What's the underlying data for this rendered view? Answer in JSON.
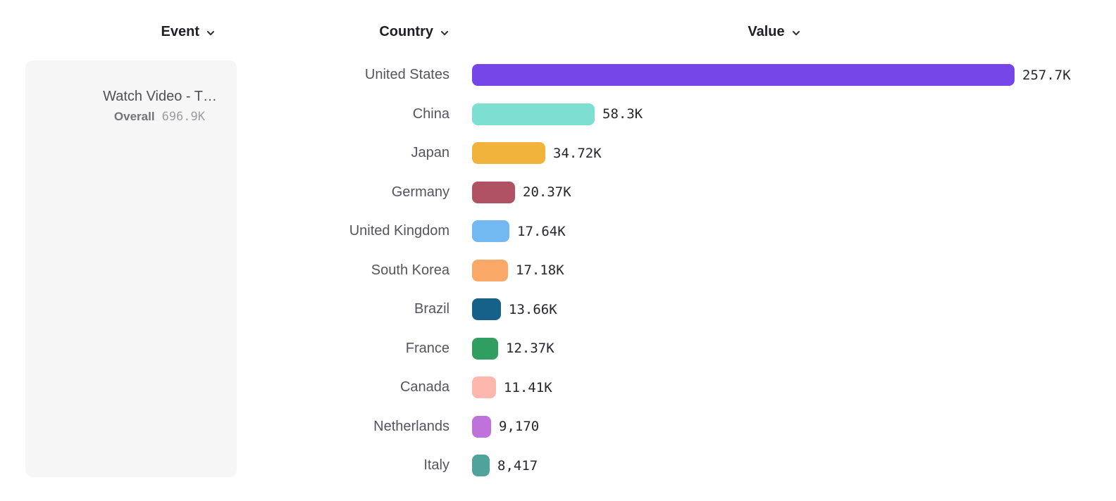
{
  "columns": {
    "event": {
      "label": "Event"
    },
    "country": {
      "label": "Country"
    },
    "value": {
      "label": "Value"
    }
  },
  "event_panel": {
    "event_name": "Watch Video - T…",
    "overall_label": "Overall",
    "overall_value": "696.9K"
  },
  "chart_data": {
    "type": "bar",
    "orientation": "horizontal",
    "title": "",
    "xlabel": "Value",
    "ylabel": "Country",
    "grid": false,
    "legend": "none",
    "xlim": [
      0,
      257700
    ],
    "categories": [
      "United States",
      "China",
      "Japan",
      "Germany",
      "United Kingdom",
      "South Korea",
      "Brazil",
      "France",
      "Canada",
      "Netherlands",
      "Italy"
    ],
    "values": [
      257700,
      58300,
      34720,
      20370,
      17640,
      17180,
      13660,
      12370,
      11410,
      9170,
      8417
    ],
    "value_labels": [
      "257.7K",
      "58.3K",
      "34.72K",
      "20.37K",
      "17.64K",
      "17.18K",
      "13.66K",
      "12.37K",
      "11.41K",
      "9,170",
      "8,417"
    ],
    "colors": [
      "#7646E8",
      "#7CDFD2",
      "#F2B33D",
      "#B05264",
      "#72B9F2",
      "#FAA868",
      "#16618A",
      "#2F9E60",
      "#FDB7AC",
      "#BE72DA",
      "#4FA39C"
    ]
  }
}
